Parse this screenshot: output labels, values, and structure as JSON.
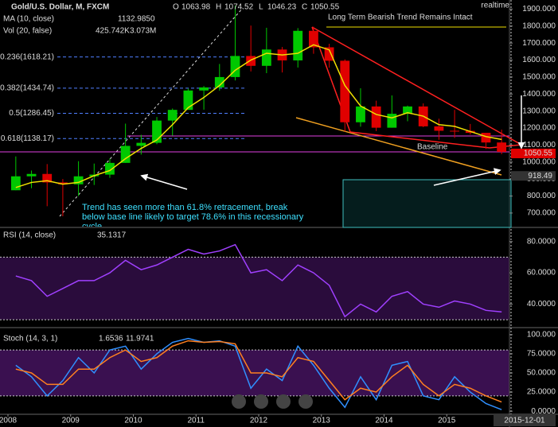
{
  "chart_data": [
    {
      "type": "candlestick",
      "title": "Gold/U.S. Dollar, M, FXCM",
      "ohlc_labels": [
        "O",
        "H",
        "L",
        "C"
      ],
      "ohlc_values": [
        1063.98,
        1074.52,
        1046.23,
        1050.55
      ],
      "categories": [
        "2008",
        null,
        null,
        null,
        "2009",
        null,
        null,
        null,
        "2010",
        null,
        null,
        null,
        "2011",
        null,
        null,
        null,
        "2012",
        null,
        null,
        null,
        "2013",
        null,
        null,
        null,
        "2014",
        null,
        null,
        null,
        "2015",
        null,
        null,
        null
      ],
      "open": [
        834,
        916,
        930,
        880,
        869,
        916,
        926,
        995,
        1095,
        1113,
        1244,
        1307,
        1421,
        1439,
        1500,
        1624,
        1566,
        1662,
        1598,
        1772,
        1675,
        1596,
        1234,
        1327,
        1202,
        1284,
        1327,
        1210,
        1184,
        1183,
        1172,
        1115
      ],
      "high": [
        1033,
        950,
        988,
        900,
        1005,
        991,
        1020,
        1226,
        1160,
        1265,
        1315,
        1432,
        1447,
        1577,
        1920,
        1803,
        1790,
        1677,
        1788,
        1796,
        1696,
        1604,
        1434,
        1361,
        1392,
        1332,
        1345,
        1255,
        1307,
        1224,
        1170,
        1191
      ],
      "low": [
        834,
        846,
        740,
        681,
        800,
        865,
        907,
        995,
        1044,
        1105,
        1155,
        1308,
        1308,
        1420,
        1480,
        1533,
        1523,
        1527,
        1556,
        1637,
        1555,
        1180,
        1208,
        1182,
        1202,
        1240,
        1205,
        1131,
        1142,
        1162,
        1077,
        1046
      ],
      "close": [
        916,
        930,
        880,
        869,
        916,
        926,
        995,
        1095,
        1113,
        1244,
        1307,
        1421,
        1439,
        1500,
        1624,
        1566,
        1662,
        1598,
        1772,
        1675,
        1596,
        1234,
        1327,
        1202,
        1284,
        1327,
        1210,
        1184,
        1183,
        1172,
        1115,
        1060
      ],
      "up_color": "#00c800",
      "down_color": "#e00000",
      "series": [
        {
          "name": "MA (10, close)",
          "color": "#f0e000",
          "last": {
            "value": 1132.985,
            "label": "1132.9850"
          },
          "values": [
            850,
            880,
            890,
            870,
            880,
            920,
            950,
            1020,
            1080,
            1130,
            1220,
            1320,
            1380,
            1450,
            1540,
            1600,
            1640,
            1630,
            1640,
            1690,
            1660,
            1450,
            1330,
            1280,
            1260,
            1290,
            1270,
            1220,
            1210,
            1180,
            1150,
            1133
          ]
        }
      ],
      "volume_label": "Vol (20, false)",
      "volume_values": [
        "425.742K",
        "3.073M"
      ],
      "fib_levels": [
        {
          "value": 1618.21,
          "label": "0.236(1618.21)"
        },
        {
          "value": 1434.74,
          "label": "0.382(1434.74)"
        },
        {
          "value": 1286.45,
          "label": "0.5(1286.45)"
        },
        {
          "value": 1138.17,
          "label": "0.618(1138.17)"
        }
      ],
      "price_tags": [
        {
          "value": 1050.55,
          "label": "1050.55"
        },
        {
          "value": 918.49,
          "label": "918.49"
        }
      ],
      "annotations": [
        "Long Term Bearish Trend Remains Intact",
        "Trend has seen more than 61.8% retracement, break below base line likely to target 78.6% in this recessionary cycle.",
        "Baseline"
      ],
      "status": "realtime",
      "date_tag": "2015-12-01",
      "ylim": [
        620,
        1930
      ],
      "yticks": [
        {
          "value": 700,
          "label": "700.000"
        },
        {
          "value": 800,
          "label": "800.000"
        },
        {
          "value": 900,
          "label": "900.000"
        },
        {
          "value": 1000,
          "label": "1000.000"
        },
        {
          "value": 1100,
          "label": "1100.000"
        },
        {
          "value": 1200,
          "label": "1200.000"
        },
        {
          "value": 1300,
          "label": "1300.000"
        },
        {
          "value": 1400,
          "label": "1400.000"
        },
        {
          "value": 1500,
          "label": "1500.000"
        },
        {
          "value": 1600,
          "label": "1600.000"
        },
        {
          "value": 1700,
          "label": "1700.000"
        },
        {
          "value": 1800,
          "label": "1800.000"
        },
        {
          "value": 1900,
          "label": "1900.000"
        }
      ]
    },
    {
      "type": "line",
      "title": "RSI (14, close)",
      "last_value": 35.1317,
      "series": [
        {
          "name": "RSI",
          "color": "#a040ff",
          "values": [
            58,
            55,
            45,
            50,
            55,
            55,
            60,
            68,
            62,
            65,
            70,
            75,
            72,
            74,
            78,
            60,
            62,
            55,
            65,
            60,
            52,
            32,
            40,
            35,
            45,
            48,
            40,
            38,
            42,
            40,
            36,
            35
          ]
        }
      ],
      "levels": [
        70,
        30
      ],
      "band_color": "#2a0c3c",
      "ylim": [
        26,
        88
      ],
      "yticks": [
        {
          "value": 80,
          "label": "80.0000"
        },
        {
          "value": 60,
          "label": "60.0000"
        },
        {
          "value": 40,
          "label": "40.0000"
        }
      ]
    },
    {
      "type": "line",
      "title": "Stoch (14, 3, 1)",
      "last_values": [
        1.6536,
        11.9741
      ],
      "series": [
        {
          "name": "%K",
          "color": "#3090ff",
          "values": [
            60,
            45,
            20,
            40,
            70,
            50,
            80,
            85,
            55,
            75,
            90,
            95,
            90,
            92,
            85,
            30,
            55,
            40,
            85,
            60,
            30,
            5,
            45,
            15,
            60,
            65,
            20,
            15,
            45,
            25,
            10,
            2
          ]
        },
        {
          "name": "%D",
          "color": "#ff8020",
          "values": [
            55,
            50,
            35,
            35,
            55,
            55,
            70,
            80,
            65,
            70,
            85,
            92,
            90,
            91,
            88,
            50,
            50,
            45,
            70,
            65,
            40,
            15,
            30,
            25,
            45,
            60,
            35,
            20,
            35,
            30,
            20,
            12
          ]
        }
      ],
      "levels": [
        80,
        20
      ],
      "band_color": "#3a1050",
      "ylim": [
        -3,
        103
      ],
      "yticks": [
        {
          "value": 100,
          "label": "100.000"
        },
        {
          "value": 75,
          "label": "75.0000"
        },
        {
          "value": 50,
          "label": "50.0000"
        },
        {
          "value": 25,
          "label": "25.0000"
        },
        {
          "value": 0,
          "label": "0.0000"
        }
      ]
    }
  ]
}
